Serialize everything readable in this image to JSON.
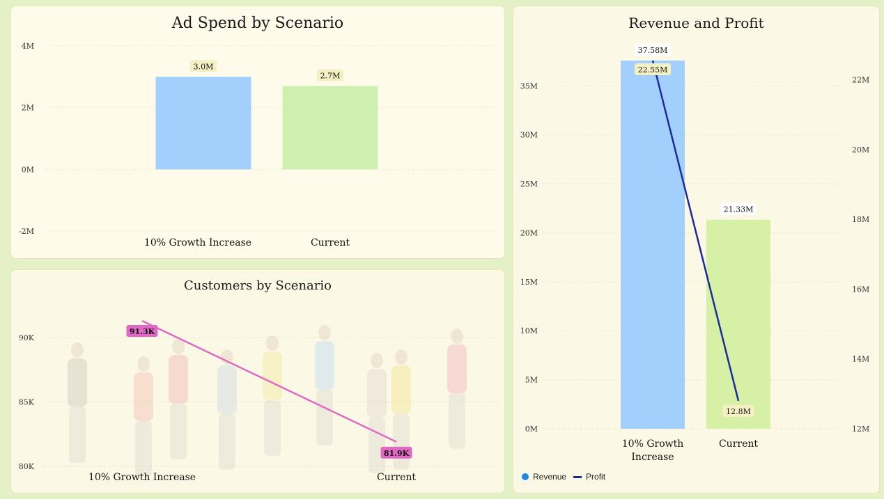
{
  "colors": {
    "bar_growth": "#a3cffc",
    "bar_current": "#cdf0b0",
    "bar_current_rev": "#d6f0a6",
    "label_bg": "#f5f0c4",
    "customers_line": "#e06ac3",
    "profit_line": "#1a2a9c",
    "revenue_dot": "#1e88e5"
  },
  "chart_data": [
    {
      "id": "adspend",
      "type": "bar",
      "title": "Ad Spend by Scenario",
      "categories": [
        "10% Growth Increase",
        "Current"
      ],
      "values": [
        3.0,
        2.7
      ],
      "value_labels": [
        "3.0M",
        "2.7M"
      ],
      "y_ticks": [
        {
          "value": 4,
          "label": "4M"
        },
        {
          "value": 2,
          "label": "2M"
        },
        {
          "value": 0,
          "label": "0M"
        },
        {
          "value": -2,
          "label": "-2M"
        }
      ],
      "ylim": [
        -2,
        4
      ],
      "grid": true
    },
    {
      "id": "customers",
      "type": "line",
      "title": "Customers by Scenario",
      "categories": [
        "10% Growth Increase",
        "Current"
      ],
      "values": [
        91.3,
        81.9
      ],
      "value_labels": [
        "91.3K",
        "81.9K"
      ],
      "y_ticks": [
        {
          "value": 90,
          "label": "90K"
        },
        {
          "value": 85,
          "label": "85K"
        },
        {
          "value": 80,
          "label": "80K"
        }
      ],
      "ylim": [
        80,
        92
      ],
      "grid": true
    },
    {
      "id": "revenue",
      "type": "bar",
      "title": "Revenue and Profit",
      "categories": [
        "10% Growth Increase",
        "Current"
      ],
      "category_lines": [
        [
          "10% Growth",
          "Increase"
        ],
        [
          "Current"
        ]
      ],
      "series": [
        {
          "name": "Revenue",
          "type": "bar",
          "axis": "left",
          "values": [
            37.58,
            21.33
          ],
          "value_labels": [
            "37.58M",
            "21.33M"
          ]
        },
        {
          "name": "Profit",
          "type": "line",
          "axis": "right",
          "values": [
            22.55,
            12.8
          ],
          "value_labels": [
            "22.55M",
            "12.8M"
          ]
        }
      ],
      "y_ticks": [
        {
          "value": 35,
          "label": "35M"
        },
        {
          "value": 30,
          "label": "30M"
        },
        {
          "value": 25,
          "label": "25M"
        },
        {
          "value": 20,
          "label": "20M"
        },
        {
          "value": 15,
          "label": "15M"
        },
        {
          "value": 10,
          "label": "10M"
        },
        {
          "value": 5,
          "label": "5M"
        },
        {
          "value": 0,
          "label": "0M"
        }
      ],
      "y2_ticks": [
        {
          "value": 22,
          "label": "22M"
        },
        {
          "value": 20,
          "label": "20M"
        },
        {
          "value": 18,
          "label": "18M"
        },
        {
          "value": 16,
          "label": "16M"
        },
        {
          "value": 14,
          "label": "14M"
        },
        {
          "value": 12,
          "label": "12M"
        }
      ],
      "ylim": [
        0,
        37.58
      ],
      "y2lim": [
        12,
        22.55
      ],
      "legend": [
        {
          "name": "Revenue",
          "marker": "dot"
        },
        {
          "name": "Profit",
          "marker": "line"
        }
      ],
      "legend_position": "bottom-left",
      "grid": true
    }
  ]
}
